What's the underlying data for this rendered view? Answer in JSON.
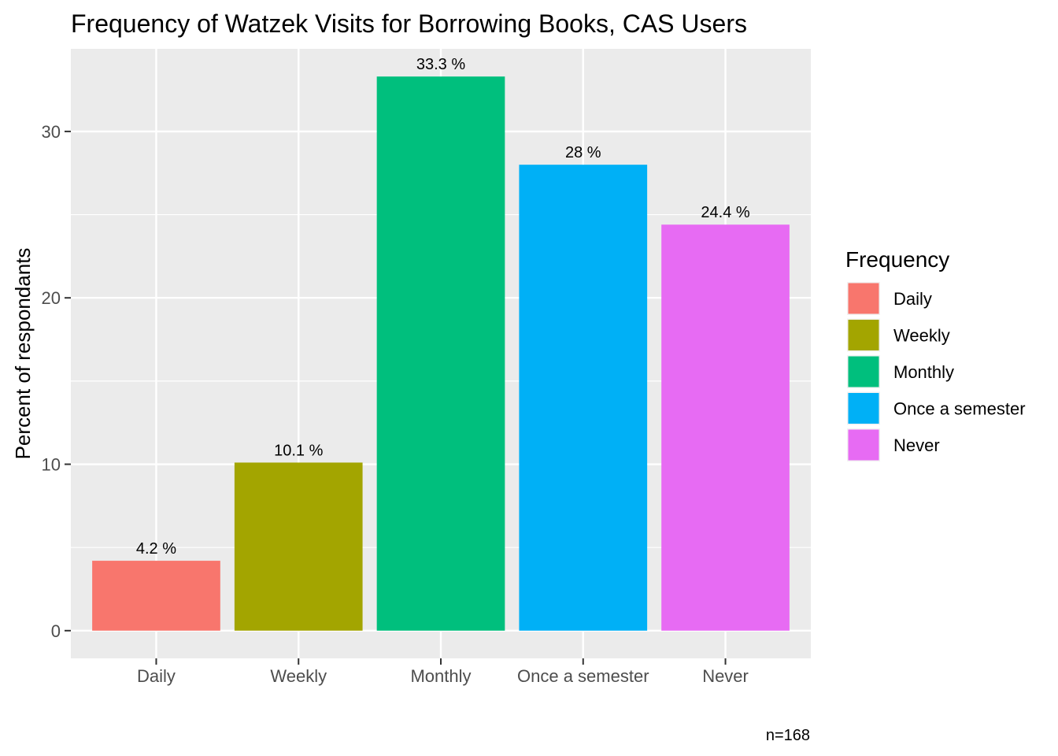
{
  "chart_data": {
    "type": "bar",
    "title": "Frequency of Watzek Visits for Borrowing Books, CAS Users",
    "xlabel": "",
    "ylabel": "Percent of respondants",
    "categories": [
      "Daily",
      "Weekly",
      "Monthly",
      "Once a semester",
      "Never"
    ],
    "values": [
      4.2,
      10.1,
      33.3,
      28,
      24.4
    ],
    "data_labels": [
      "4.2 %",
      "10.1 %",
      "33.3 %",
      "28 %",
      "24.4 %"
    ],
    "colors": [
      "#F8766D",
      "#A3A500",
      "#00BF7D",
      "#00B0F6",
      "#E76BF3"
    ],
    "yticks": [
      0,
      10,
      20,
      30
    ],
    "ylim": [
      -1.665,
      34.965
    ],
    "grid": true,
    "panel_background": "#EBEBEB",
    "legend": {
      "title": "Frequency",
      "placement": "right",
      "entries": [
        "Daily",
        "Weekly",
        "Monthly",
        "Once a semester",
        "Never"
      ]
    },
    "caption": "n=168"
  }
}
